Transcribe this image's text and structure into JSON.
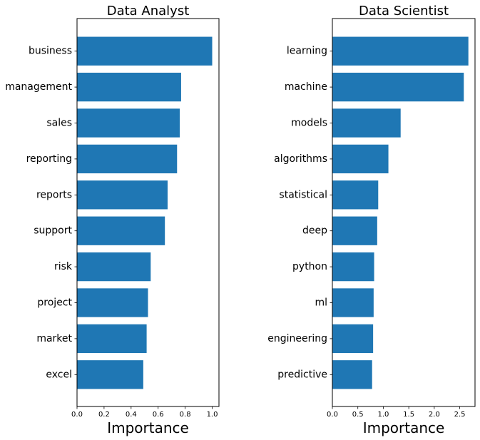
{
  "figure": {
    "bar_color": "#1f77b4",
    "background": "#ffffff"
  },
  "chart_data": [
    {
      "type": "bar",
      "orientation": "horizontal",
      "title": "Data Analyst",
      "xlabel": "Importance",
      "ylabel": "",
      "xlim": [
        0,
        1.05
      ],
      "xticks": [
        0.0,
        0.2,
        0.4,
        0.6,
        0.8,
        1.0
      ],
      "xtick_labels": [
        "0.0",
        "0.2",
        "0.4",
        "0.6",
        "0.8",
        "1.0"
      ],
      "grid": false,
      "categories": [
        "business",
        "management",
        "sales",
        "reporting",
        "reports",
        "support",
        "risk",
        "project",
        "market",
        "excel"
      ],
      "values": [
        1.0,
        0.77,
        0.76,
        0.74,
        0.67,
        0.65,
        0.545,
        0.525,
        0.515,
        0.49
      ]
    },
    {
      "type": "bar",
      "orientation": "horizontal",
      "title": "Data Scientist",
      "xlabel": "Importance",
      "ylabel": "",
      "xlim": [
        0,
        2.8
      ],
      "xticks": [
        0.0,
        0.5,
        1.0,
        1.5,
        2.0,
        2.5
      ],
      "xtick_labels": [
        "0.0",
        "0.5",
        "1.0",
        "1.5",
        "2.0",
        "2.5"
      ],
      "grid": false,
      "categories": [
        "learning",
        "machine",
        "models",
        "algorithms",
        "statistical",
        "deep",
        "python",
        "ml",
        "engineering",
        "predictive"
      ],
      "values": [
        2.67,
        2.58,
        1.34,
        1.1,
        0.9,
        0.88,
        0.82,
        0.81,
        0.8,
        0.78
      ]
    }
  ]
}
